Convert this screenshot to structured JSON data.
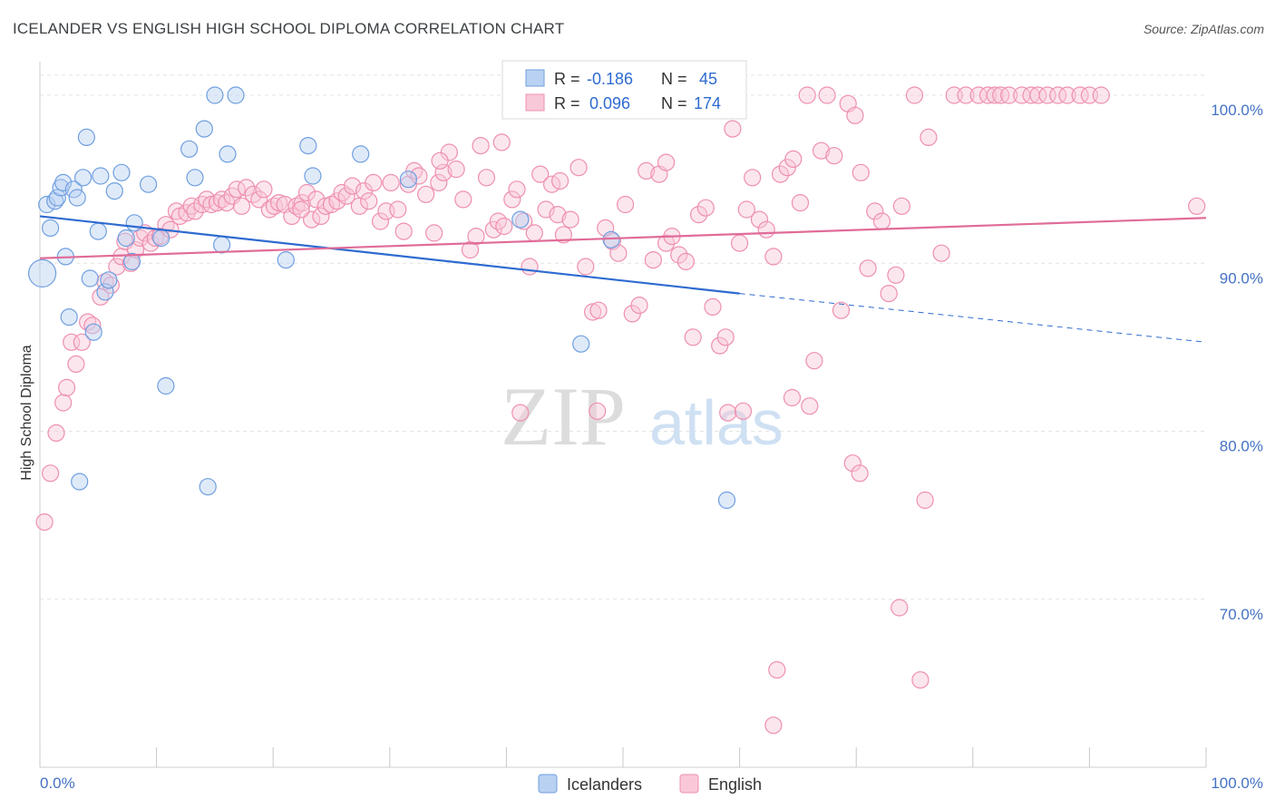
{
  "title": "ICELANDER VS ENGLISH HIGH SCHOOL DIPLOMA CORRELATION CHART",
  "source": "Source: ZipAtlas.com",
  "watermark": {
    "zip": "ZIP",
    "atlas": "atlas"
  },
  "legend": {
    "r_label": "R =",
    "n_label": "N =",
    "icelanders": {
      "r": "-0.186",
      "n": "45"
    },
    "english": {
      "r": "0.096",
      "n": "174"
    }
  },
  "chart_data": {
    "type": "scatter",
    "title": "ICELANDER VS ENGLISH HIGH SCHOOL DIPLOMA CORRELATION CHART",
    "xlabel": "",
    "ylabel": "High School Diploma",
    "xlim": [
      0,
      100
    ],
    "ylim": [
      60,
      102
    ],
    "x_tick_labels": [
      "0.0%",
      "100.0%"
    ],
    "y_ticks": [
      {
        "value": 100,
        "label": "100.0%"
      },
      {
        "value": 90,
        "label": "90.0%"
      },
      {
        "value": 80,
        "label": "80.0%"
      },
      {
        "value": 70,
        "label": "70.0%"
      }
    ],
    "colors": {
      "icelanders": "#6f9fe0",
      "english": "#ee8fb0",
      "icelanders_line": "#2e6bd0",
      "english_line": "#e06c98"
    },
    "series": [
      {
        "name": "Icelanders",
        "trend": {
          "x0": 0,
          "y0": 92.8,
          "x1": 60,
          "y1": 88.2,
          "dash_to_x": 100,
          "dash_to_y": 85.3
        },
        "points": [
          [
            0.2,
            89.4
          ],
          [
            0.6,
            93.5
          ],
          [
            0.9,
            92.1
          ],
          [
            1.3,
            93.7
          ],
          [
            1.5,
            93.9
          ],
          [
            1.8,
            94.5
          ],
          [
            2.0,
            94.8
          ],
          [
            2.2,
            90.4
          ],
          [
            2.5,
            86.8
          ],
          [
            2.9,
            94.4
          ],
          [
            3.2,
            93.9
          ],
          [
            3.4,
            77.0
          ],
          [
            3.7,
            95.1
          ],
          [
            4.0,
            97.5
          ],
          [
            4.3,
            89.1
          ],
          [
            4.6,
            85.9
          ],
          [
            5.0,
            91.9
          ],
          [
            5.2,
            95.2
          ],
          [
            5.6,
            88.3
          ],
          [
            5.9,
            89.0
          ],
          [
            6.4,
            94.3
          ],
          [
            7.0,
            95.4
          ],
          [
            7.4,
            91.5
          ],
          [
            7.9,
            90.1
          ],
          [
            8.1,
            92.4
          ],
          [
            9.3,
            94.7
          ],
          [
            10.4,
            91.5
          ],
          [
            10.8,
            82.7
          ],
          [
            12.8,
            96.8
          ],
          [
            13.3,
            95.1
          ],
          [
            14.1,
            98.0
          ],
          [
            14.4,
            76.7
          ],
          [
            15.0,
            100.0
          ],
          [
            15.6,
            91.1
          ],
          [
            16.1,
            96.5
          ],
          [
            16.8,
            100.0
          ],
          [
            21.1,
            90.2
          ],
          [
            23.0,
            97.0
          ],
          [
            23.4,
            95.2
          ],
          [
            27.5,
            96.5
          ],
          [
            31.6,
            95.0
          ],
          [
            41.2,
            92.6
          ],
          [
            46.4,
            85.2
          ],
          [
            49.0,
            91.4
          ],
          [
            58.9,
            75.9
          ]
        ]
      },
      {
        "name": "English",
        "trend": {
          "x0": 0,
          "y0": 90.3,
          "x1": 100,
          "y1": 92.7
        },
        "points": [
          [
            0.4,
            74.6
          ],
          [
            0.9,
            77.5
          ],
          [
            1.4,
            79.9
          ],
          [
            2.0,
            81.7
          ],
          [
            2.3,
            82.6
          ],
          [
            2.7,
            85.3
          ],
          [
            3.1,
            84.0
          ],
          [
            3.6,
            85.3
          ],
          [
            4.1,
            86.5
          ],
          [
            4.5,
            86.3
          ],
          [
            5.2,
            88.0
          ],
          [
            5.6,
            88.9
          ],
          [
            6.1,
            88.7
          ],
          [
            6.6,
            89.8
          ],
          [
            7.0,
            90.4
          ],
          [
            7.3,
            91.3
          ],
          [
            7.8,
            90.0
          ],
          [
            8.2,
            90.8
          ],
          [
            8.6,
            91.5
          ],
          [
            9.0,
            91.8
          ],
          [
            9.5,
            91.2
          ],
          [
            9.9,
            91.5
          ],
          [
            10.3,
            91.6
          ],
          [
            10.8,
            92.3
          ],
          [
            11.2,
            92.0
          ],
          [
            11.7,
            93.1
          ],
          [
            12.0,
            92.8
          ],
          [
            12.6,
            93.0
          ],
          [
            13.0,
            93.4
          ],
          [
            13.3,
            93.1
          ],
          [
            13.9,
            93.5
          ],
          [
            14.3,
            93.8
          ],
          [
            14.7,
            93.5
          ],
          [
            15.2,
            93.6
          ],
          [
            15.6,
            93.8
          ],
          [
            16.0,
            93.6
          ],
          [
            16.5,
            94.0
          ],
          [
            16.9,
            94.4
          ],
          [
            17.3,
            93.4
          ],
          [
            17.7,
            94.5
          ],
          [
            18.3,
            94.1
          ],
          [
            18.8,
            93.8
          ],
          [
            19.2,
            94.4
          ],
          [
            19.7,
            93.2
          ],
          [
            20.1,
            93.4
          ],
          [
            20.5,
            93.6
          ],
          [
            21.0,
            93.5
          ],
          [
            21.6,
            92.8
          ],
          [
            22.0,
            93.4
          ],
          [
            22.5,
            93.6
          ],
          [
            22.9,
            94.2
          ],
          [
            23.3,
            92.6
          ],
          [
            23.7,
            93.8
          ],
          [
            24.1,
            92.8
          ],
          [
            24.5,
            93.4
          ],
          [
            25.0,
            93.5
          ],
          [
            25.5,
            93.7
          ],
          [
            25.9,
            94.2
          ],
          [
            26.3,
            94.0
          ],
          [
            26.8,
            94.6
          ],
          [
            27.4,
            93.4
          ],
          [
            27.8,
            94.3
          ],
          [
            28.2,
            93.7
          ],
          [
            28.6,
            94.8
          ],
          [
            29.2,
            92.5
          ],
          [
            29.7,
            93.1
          ],
          [
            30.1,
            94.8
          ],
          [
            30.7,
            93.2
          ],
          [
            31.2,
            91.9
          ],
          [
            31.6,
            94.7
          ],
          [
            32.1,
            95.5
          ],
          [
            32.5,
            95.2
          ],
          [
            33.1,
            94.1
          ],
          [
            33.8,
            91.8
          ],
          [
            34.2,
            94.8
          ],
          [
            34.6,
            95.4
          ],
          [
            35.1,
            96.6
          ],
          [
            35.7,
            95.6
          ],
          [
            36.3,
            93.8
          ],
          [
            36.9,
            90.8
          ],
          [
            37.4,
            91.6
          ],
          [
            37.8,
            97.0
          ],
          [
            38.3,
            95.1
          ],
          [
            38.9,
            92.0
          ],
          [
            39.3,
            92.5
          ],
          [
            39.8,
            92.2
          ],
          [
            40.5,
            93.8
          ],
          [
            40.9,
            94.4
          ],
          [
            41.5,
            92.5
          ],
          [
            42.0,
            89.8
          ],
          [
            42.4,
            91.8
          ],
          [
            42.9,
            95.3
          ],
          [
            43.4,
            93.2
          ],
          [
            43.9,
            94.7
          ],
          [
            44.4,
            92.9
          ],
          [
            44.9,
            91.7
          ],
          [
            45.5,
            92.6
          ],
          [
            46.2,
            95.7
          ],
          [
            46.8,
            89.8
          ],
          [
            47.4,
            87.1
          ],
          [
            47.9,
            87.2
          ],
          [
            48.5,
            92.1
          ],
          [
            49.1,
            91.3
          ],
          [
            49.6,
            90.6
          ],
          [
            50.2,
            93.5
          ],
          [
            50.8,
            87.0
          ],
          [
            51.4,
            87.5
          ],
          [
            52.0,
            95.5
          ],
          [
            52.6,
            90.2
          ],
          [
            53.1,
            95.3
          ],
          [
            53.7,
            91.2
          ],
          [
            54.2,
            91.6
          ],
          [
            54.8,
            90.5
          ],
          [
            55.4,
            90.1
          ],
          [
            56.0,
            85.6
          ],
          [
            56.5,
            92.9
          ],
          [
            57.1,
            93.3
          ],
          [
            57.7,
            87.4
          ],
          [
            58.3,
            85.1
          ],
          [
            58.8,
            85.6
          ],
          [
            59.4,
            98.0
          ],
          [
            60.0,
            91.2
          ],
          [
            60.6,
            93.2
          ],
          [
            61.1,
            95.1
          ],
          [
            61.7,
            92.6
          ],
          [
            62.3,
            92.0
          ],
          [
            62.9,
            90.4
          ],
          [
            63.5,
            95.3
          ],
          [
            64.1,
            95.7
          ],
          [
            64.6,
            96.2
          ],
          [
            65.2,
            93.6
          ],
          [
            65.8,
            100.0
          ],
          [
            66.4,
            84.2
          ],
          [
            67.0,
            96.7
          ],
          [
            67.5,
            100.0
          ],
          [
            68.1,
            96.4
          ],
          [
            68.7,
            87.2
          ],
          [
            69.3,
            99.5
          ],
          [
            69.9,
            98.8
          ],
          [
            70.4,
            95.4
          ],
          [
            71.0,
            89.7
          ],
          [
            71.6,
            93.1
          ],
          [
            72.2,
            92.5
          ],
          [
            72.8,
            88.2
          ],
          [
            73.4,
            89.3
          ],
          [
            73.9,
            93.4
          ],
          [
            75.0,
            100.0
          ],
          [
            76.2,
            97.5
          ],
          [
            77.3,
            90.6
          ],
          [
            78.4,
            100.0
          ],
          [
            79.4,
            100.0
          ],
          [
            80.5,
            100.0
          ],
          [
            81.3,
            100.0
          ],
          [
            81.9,
            100.0
          ],
          [
            82.4,
            100.0
          ],
          [
            83.1,
            100.0
          ],
          [
            84.2,
            100.0
          ],
          [
            85.0,
            100.0
          ],
          [
            85.6,
            100.0
          ],
          [
            86.4,
            100.0
          ],
          [
            87.3,
            100.0
          ],
          [
            88.1,
            100.0
          ],
          [
            89.2,
            100.0
          ],
          [
            90.0,
            100.0
          ],
          [
            91.0,
            100.0
          ],
          [
            99.2,
            93.4
          ],
          [
            34.3,
            96.1
          ],
          [
            39.6,
            97.2
          ],
          [
            44.6,
            94.9
          ],
          [
            53.7,
            96.0
          ],
          [
            59.0,
            81.1
          ],
          [
            60.3,
            81.2
          ],
          [
            62.9,
            62.5
          ],
          [
            63.2,
            65.8
          ],
          [
            64.5,
            82.0
          ],
          [
            66.0,
            81.5
          ],
          [
            69.7,
            78.1
          ],
          [
            70.3,
            77.5
          ],
          [
            73.7,
            69.5
          ],
          [
            75.5,
            65.2
          ],
          [
            75.9,
            75.9
          ],
          [
            41.2,
            81.1
          ],
          [
            47.8,
            81.2
          ],
          [
            22.4,
            93.2
          ]
        ]
      }
    ]
  },
  "bottom_legend": [
    {
      "label": "Icelanders",
      "color": "#b9d1f2",
      "stroke": "#6f9fe0"
    },
    {
      "label": "English",
      "color": "#f9c8d8",
      "stroke": "#ee8fb0"
    }
  ]
}
